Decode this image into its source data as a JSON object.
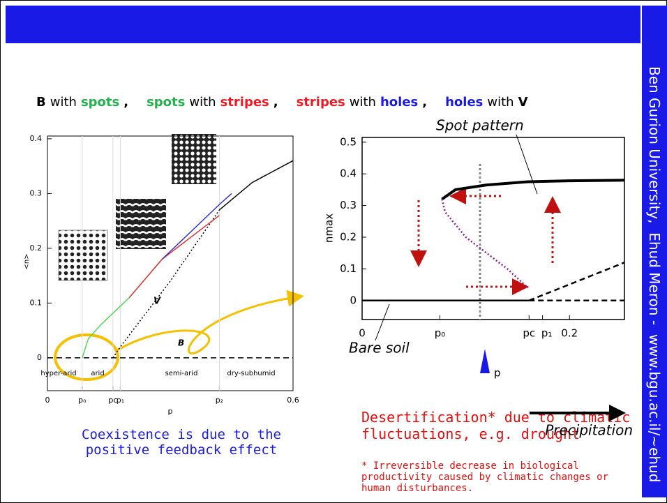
{
  "header": {
    "sidebar": "Ben Gurion University,  Ehud Meron -  www.bgu.ac.il/~ehud"
  },
  "headline": [
    [
      {
        "text": "B",
        "color": "#000000"
      },
      {
        "text": "with",
        "color": "#000000"
      },
      {
        "text": "spots",
        "color": "#22b14c"
      },
      {
        "text": ",",
        "color": "#000000"
      }
    ],
    [
      {
        "text": "spots",
        "color": "#22b14c"
      },
      {
        "text": "with",
        "color": "#000000"
      },
      {
        "text": "stripes",
        "color": "#ed1c24"
      },
      {
        "text": ",",
        "color": "#000000"
      }
    ],
    [
      {
        "text": "stripes",
        "color": "#ed1c24"
      },
      {
        "text": "with",
        "color": "#000000"
      },
      {
        "text": "holes",
        "color": "#1a1ae6"
      },
      {
        "text": ",",
        "color": "#000000"
      }
    ],
    [
      {
        "text": "holes",
        "color": "#1a1ae6"
      },
      {
        "text": "with",
        "color": "#000000"
      },
      {
        "text": "V",
        "color": "#000000"
      }
    ]
  ],
  "left_caption": "Coexistence is due to the positive feedback effect",
  "right_caption": "Desertification* due to climatic fluctuations, e.g. drought",
  "footnote": "* Irreversible decrease in  biological productivity caused by climatic changes or human disturbances.",
  "chart_data": [
    {
      "type": "line",
      "x_label": "p",
      "y_label": "<n>",
      "xlim": [
        0,
        0.6
      ],
      "ylim": [
        -0.06,
        0.405
      ],
      "xticks": [
        0,
        {
          "value": 0.085,
          "label": "p₀"
        },
        {
          "value": 0.16,
          "label": "pc"
        },
        {
          "value": 0.178,
          "label": "p₁"
        },
        {
          "value": 0.42,
          "label": "p₂"
        },
        0.6
      ],
      "yticks": [
        0,
        0.1,
        0.2,
        0.3,
        0.4
      ],
      "regions": [
        "hyper-arid",
        "arid",
        "semi-arid",
        "dry-subhumid"
      ],
      "annotations": [
        "B",
        "V"
      ],
      "series": [
        {
          "color": "#000000",
          "linestyle": "dashed",
          "x": [
            0,
            0.6
          ],
          "values": [
            0,
            0
          ]
        },
        {
          "color": "#000000",
          "linestyle": "dotted",
          "x": [
            0.16,
            0.178,
            0.3,
            0.42
          ],
          "values": [
            0,
            0.02,
            0.14,
            0.27
          ]
        },
        {
          "color": "#000000",
          "linestyle": "solid",
          "x": [
            0.42,
            0.5,
            0.6
          ],
          "values": [
            0.27,
            0.32,
            0.36
          ]
        },
        {
          "color": "#55d65a",
          "linestyle": "solid",
          "x": [
            0.085,
            0.1,
            0.13,
            0.2,
            0.28
          ],
          "values": [
            0,
            0.035,
            0.06,
            0.11,
            0.18
          ]
        },
        {
          "color": "#e03030",
          "linestyle": "solid",
          "x": [
            0.2,
            0.28,
            0.35,
            0.42
          ],
          "values": [
            0.11,
            0.18,
            0.22,
            0.26
          ]
        },
        {
          "color": "#3030d0",
          "linestyle": "solid",
          "x": [
            0.28,
            0.35,
            0.42,
            0.45
          ],
          "values": [
            0.18,
            0.23,
            0.28,
            0.3
          ]
        }
      ]
    },
    {
      "type": "line",
      "x_label": "Precipitation",
      "y_label": "nmax",
      "xlim": [
        0,
        0.253
      ],
      "ylim": [
        -0.06,
        0.515
      ],
      "xticks": [
        0,
        {
          "value": 0.075,
          "label": "p₀"
        },
        {
          "value": 0.161,
          "label": "pc"
        },
        {
          "value": 0.174,
          "label": "p₁"
        },
        0.2
      ],
      "yticks": [
        0,
        0.1,
        0.2,
        0.3,
        0.4,
        0.5
      ],
      "annotations": [
        "Spot pattern",
        "Bare soil",
        "p"
      ],
      "series": [
        {
          "color": "#000000",
          "linestyle": "solid",
          "x": [
            0,
            0.161
          ],
          "values": [
            0,
            0
          ]
        },
        {
          "color": "#000000",
          "linestyle": "dashed",
          "x": [
            0.161,
            0.253
          ],
          "values": [
            0,
            0
          ]
        },
        {
          "color": "#000000",
          "linestyle": "dashed",
          "x": [
            0.161,
            0.253
          ],
          "values": [
            0,
            0.12
          ]
        },
        {
          "color": "#000000",
          "linestyle": "thick",
          "x": [
            0.077,
            0.09,
            0.12,
            0.16,
            0.2,
            0.253
          ],
          "values": [
            0.32,
            0.35,
            0.365,
            0.375,
            0.378,
            0.38
          ]
        },
        {
          "color": "#8b1a9b",
          "linestyle": "dotted",
          "x": [
            0.077,
            0.08,
            0.1,
            0.12,
            0.14,
            0.16
          ],
          "values": [
            0.32,
            0.28,
            0.2,
            0.15,
            0.1,
            0.04
          ]
        }
      ]
    }
  ]
}
